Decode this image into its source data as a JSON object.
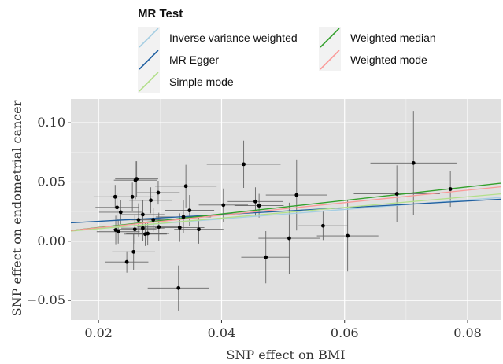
{
  "chart_data": {
    "type": "scatter",
    "xlabel": "SNP effect on BMI",
    "ylabel": "SNP effect on endometrial cancer",
    "xlim": [
      0.0155,
      0.0855
    ],
    "ylim": [
      -0.0665,
      0.12
    ],
    "grid": true,
    "x_ticks": [
      0.02,
      0.04,
      0.06,
      0.08
    ],
    "x_tick_labels": [
      "0.02",
      "0.04",
      "0.06",
      "0.08"
    ],
    "y_ticks": [
      -0.05,
      0.0,
      0.05,
      0.1
    ],
    "y_tick_labels": [
      "−0.05",
      "0.00",
      "0.05",
      "0.10"
    ],
    "legend": {
      "title": "MR Test",
      "placement": "top",
      "items": [
        {
          "name": "Inverse variance weighted",
          "color": "#a6cee3"
        },
        {
          "name": "Weighted median",
          "color": "#33a02c"
        },
        {
          "name": "MR Egger",
          "color": "#1f5fa0"
        },
        {
          "name": "Weighted mode",
          "color": "#fb9a99"
        },
        {
          "name": "Simple mode",
          "color": "#b2df8a"
        }
      ]
    },
    "lines": [
      {
        "name": "Inverse variance weighted",
        "color": "#a6cee3",
        "y0": 0.009,
        "y1": 0.037
      },
      {
        "name": "MR Egger",
        "color": "#1f5fa0",
        "y0": 0.0155,
        "y1": 0.0355
      },
      {
        "name": "Simple mode",
        "color": "#b2df8a",
        "y0": 0.0085,
        "y1": 0.04
      },
      {
        "name": "Weighted median",
        "color": "#33a02c",
        "y0": 0.009,
        "y1": 0.049
      },
      {
        "name": "Weighted mode",
        "color": "#fb9a99",
        "y0": 0.009,
        "y1": 0.046
      }
    ],
    "points": [
      {
        "x": 0.0227,
        "y": 0.0375,
        "xerr": 0.0035,
        "yerr": 0.01
      },
      {
        "x": 0.023,
        "y": 0.0285,
        "xerr": 0.0035,
        "yerr": 0.012
      },
      {
        "x": 0.0228,
        "y": 0.0095,
        "xerr": 0.0035,
        "yerr": 0.012
      },
      {
        "x": 0.0232,
        "y": 0.008,
        "xerr": 0.0035,
        "yerr": 0.01
      },
      {
        "x": 0.0236,
        "y": 0.0245,
        "xerr": 0.0035,
        "yerr": 0.01
      },
      {
        "x": 0.0246,
        "y": -0.0175,
        "xerr": 0.0035,
        "yerr": 0.009
      },
      {
        "x": 0.0255,
        "y": 0.0375,
        "xerr": 0.0035,
        "yerr": 0.012
      },
      {
        "x": 0.0257,
        "y": -0.009,
        "xerr": 0.0035,
        "yerr": 0.015
      },
      {
        "x": 0.026,
        "y": 0.0515,
        "xerr": 0.0035,
        "yerr": 0.016
      },
      {
        "x": 0.0262,
        "y": 0.0525,
        "xerr": 0.0035,
        "yerr": 0.015
      },
      {
        "x": 0.0259,
        "y": 0.01,
        "xerr": 0.0035,
        "yerr": 0.012
      },
      {
        "x": 0.0265,
        "y": 0.018,
        "xerr": 0.0035,
        "yerr": 0.014
      },
      {
        "x": 0.0272,
        "y": 0.0225,
        "xerr": 0.0035,
        "yerr": 0.012
      },
      {
        "x": 0.0272,
        "y": 0.011,
        "xerr": 0.0035,
        "yerr": 0.011
      },
      {
        "x": 0.0276,
        "y": 0.006,
        "xerr": 0.0035,
        "yerr": 0.01
      },
      {
        "x": 0.028,
        "y": 0.0065,
        "xerr": 0.0035,
        "yerr": 0.01
      },
      {
        "x": 0.0285,
        "y": 0.0345,
        "xerr": 0.0035,
        "yerr": 0.011
      },
      {
        "x": 0.0289,
        "y": 0.018,
        "xerr": 0.0035,
        "yerr": 0.01
      },
      {
        "x": 0.0297,
        "y": 0.041,
        "xerr": 0.0035,
        "yerr": 0.01
      },
      {
        "x": 0.0298,
        "y": 0.012,
        "xerr": 0.0035,
        "yerr": 0.012
      },
      {
        "x": 0.033,
        "y": -0.0395,
        "xerr": 0.005,
        "yerr": 0.019
      },
      {
        "x": 0.0332,
        "y": 0.0115,
        "xerr": 0.004,
        "yerr": 0.012
      },
      {
        "x": 0.0338,
        "y": 0.0205,
        "xerr": 0.0045,
        "yerr": 0.014
      },
      {
        "x": 0.0342,
        "y": 0.0465,
        "xerr": 0.005,
        "yerr": 0.018
      },
      {
        "x": 0.0348,
        "y": 0.026,
        "xerr": 0.004,
        "yerr": 0.013
      },
      {
        "x": 0.0363,
        "y": 0.01,
        "xerr": 0.004,
        "yerr": 0.012
      },
      {
        "x": 0.0403,
        "y": 0.0305,
        "xerr": 0.004,
        "yerr": 0.014
      },
      {
        "x": 0.0436,
        "y": 0.065,
        "xerr": 0.006,
        "yerr": 0.02
      },
      {
        "x": 0.0455,
        "y": 0.0335,
        "xerr": 0.0045,
        "yerr": 0.012
      },
      {
        "x": 0.0461,
        "y": 0.03,
        "xerr": 0.004,
        "yerr": 0.01
      },
      {
        "x": 0.0472,
        "y": -0.0135,
        "xerr": 0.004,
        "yerr": 0.022
      },
      {
        "x": 0.051,
        "y": 0.0025,
        "xerr": 0.005,
        "yerr": 0.03
      },
      {
        "x": 0.0522,
        "y": 0.039,
        "xerr": 0.005,
        "yerr": 0.03
      },
      {
        "x": 0.0565,
        "y": 0.013,
        "xerr": 0.004,
        "yerr": 0.012
      },
      {
        "x": 0.0605,
        "y": 0.0045,
        "xerr": 0.005,
        "yerr": 0.03
      },
      {
        "x": 0.0685,
        "y": 0.04,
        "xerr": 0.007,
        "yerr": 0.024
      },
      {
        "x": 0.0712,
        "y": 0.066,
        "xerr": 0.007,
        "yerr": 0.044
      },
      {
        "x": 0.0772,
        "y": 0.044,
        "xerr": 0.005,
        "yerr": 0.015
      }
    ]
  }
}
